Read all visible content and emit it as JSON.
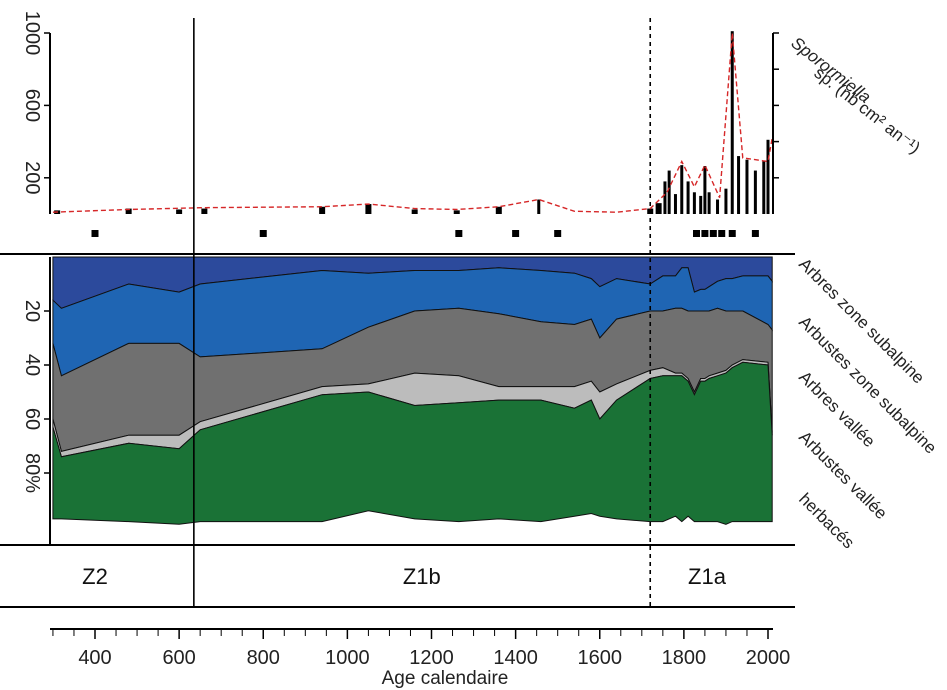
{
  "chart_data": [
    {
      "type": "bar",
      "ylabel": "Sporormiella sp. (nb cm² an⁻¹)",
      "ylabel_line1": "Sporormiella",
      "ylabel_line2": "sp. (nb cm² an⁻¹)",
      "ylim": [
        0,
        1000
      ],
      "yticks": [
        200,
        600,
        1000
      ],
      "ytick_labels": [
        "200",
        "600",
        "1000"
      ],
      "bar_color": "#000000",
      "trend_color": "#d62728",
      "bars_x": [
        310,
        480,
        600,
        660,
        940,
        1050,
        1160,
        1260,
        1360,
        1455,
        1720,
        1740,
        1755,
        1765,
        1780,
        1795,
        1810,
        1825,
        1840,
        1850,
        1860,
        1880,
        1900,
        1915,
        1930,
        1950,
        1970,
        1990,
        2000
      ],
      "bars_y": [
        20,
        30,
        25,
        30,
        40,
        55,
        25,
        20,
        40,
        80,
        30,
        60,
        180,
        240,
        110,
        270,
        180,
        120,
        100,
        265,
        120,
        80,
        140,
        1010,
        320,
        300,
        240,
        290,
        410
      ],
      "trend_x": [
        300,
        480,
        660,
        940,
        1050,
        1160,
        1260,
        1360,
        1455,
        1540,
        1640,
        1720,
        1760,
        1795,
        1825,
        1850,
        1885,
        1915,
        1940,
        2000,
        2010
      ],
      "trend_y": [
        10,
        25,
        35,
        40,
        55,
        30,
        25,
        40,
        80,
        15,
        10,
        30,
        120,
        290,
        150,
        270,
        90,
        1000,
        310,
        290,
        420
      ]
    },
    {
      "type": "scatter",
      "name": "dates",
      "x": [
        400,
        800,
        1265,
        1400,
        1500,
        1830,
        1850,
        1870,
        1890,
        1915,
        1970
      ],
      "marker_color": "#000000"
    },
    {
      "type": "area",
      "stacked": true,
      "xlabel": "Age calendaire",
      "ylim": [
        0,
        100
      ],
      "yticks": [
        20,
        40,
        60,
        80
      ],
      "ytick_labels": [
        "20",
        "40",
        "60",
        "80%"
      ],
      "x": [
        300,
        320,
        480,
        600,
        650,
        940,
        1050,
        1160,
        1265,
        1360,
        1460,
        1540,
        1580,
        1600,
        1640,
        1720,
        1750,
        1780,
        1795,
        1810,
        1825,
        1840,
        1850,
        1860,
        1880,
        1900,
        1915,
        1940,
        2000,
        2010
      ],
      "series": [
        {
          "name": "Arbres zone subalpine",
          "color": "#2c4a9c",
          "values": [
            16,
            19,
            10,
            13,
            10,
            5,
            6,
            5,
            5,
            4,
            5,
            6,
            8,
            11,
            8,
            10,
            7,
            7,
            4,
            4,
            13,
            12,
            12,
            11,
            9,
            8,
            8,
            7,
            7,
            9
          ]
        },
        {
          "name": "Arbustes zone subalpine",
          "color": "#1f65b3",
          "values": [
            16,
            25,
            22,
            19,
            27,
            29,
            20,
            15,
            14,
            17,
            19,
            19,
            15,
            19,
            15,
            10,
            13,
            12,
            15,
            16,
            7,
            8,
            8,
            9,
            10,
            12,
            12,
            13,
            18,
            18
          ]
        },
        {
          "name": "Arbres vallée",
          "color": "#707070",
          "values": [
            28,
            28,
            34,
            34,
            24,
            14,
            21,
            23,
            25,
            27,
            24,
            23,
            23,
            20,
            24,
            22,
            21,
            24,
            24,
            25,
            30,
            25,
            25,
            24,
            24,
            22,
            20,
            18,
            14,
            38
          ]
        },
        {
          "name": "Arbustes vallée",
          "color": "#bcbcbc",
          "values": [
            3,
            2,
            3,
            5,
            3,
            3,
            3,
            12,
            10,
            5,
            5,
            8,
            7,
            10,
            6,
            3,
            3,
            1,
            1,
            1,
            1,
            1,
            1,
            1,
            1,
            1,
            1,
            1,
            1,
            1
          ]
        },
        {
          "name": "herbacés",
          "color": "#1a7236",
          "values": [
            34,
            23,
            29,
            28,
            34,
            47,
            44,
            42,
            44,
            44,
            45,
            40,
            42,
            36,
            44,
            53,
            54,
            52,
            54,
            50,
            47,
            52,
            52,
            53,
            54,
            56,
            57,
            59,
            58,
            32
          ]
        }
      ]
    }
  ],
  "x_axis": {
    "label": "Age calendaire",
    "xlim": [
      280,
      2020
    ],
    "ticks": [
      400,
      600,
      800,
      1000,
      1200,
      1400,
      1600,
      1800,
      2000
    ],
    "tick_labels": [
      "400",
      "600",
      "800",
      "1000",
      "1200",
      "1400",
      "1600",
      "1800",
      "2000"
    ]
  },
  "zones": {
    "labels": [
      "Z2",
      "Z1b",
      "Z1a"
    ],
    "boundary_solid_x": 635,
    "boundary_dashed_x": 1720,
    "label_x": [
      400,
      1177,
      1855
    ]
  },
  "right_labels": [
    "Arbres zone subalpine",
    "Arbustes zone subalpine",
    "Arbres vallée",
    "Arbustes vallée",
    "herbacés"
  ]
}
